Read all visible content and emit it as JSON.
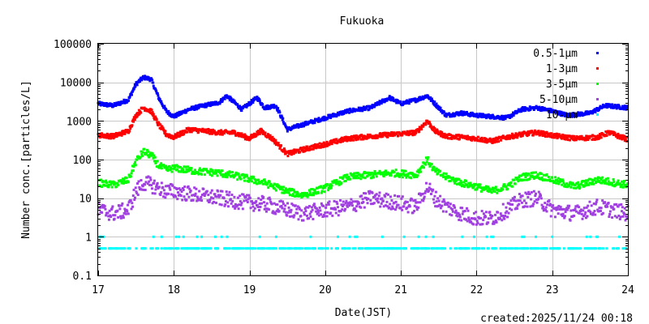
{
  "chart_data": {
    "type": "scatter",
    "title": "Fukuoka",
    "xlabel": "Date(JST)",
    "ylabel": "Number conc.[particles/L]",
    "footer": "created:2025/11/24 00:18",
    "x_ticks": [
      "17",
      "18",
      "19",
      "20",
      "21",
      "22",
      "23",
      "24"
    ],
    "y_ticks": [
      "0.1",
      "1",
      "10",
      "100",
      "1000",
      "10000",
      "100000"
    ],
    "xlim": [
      17,
      24
    ],
    "ylim": [
      0.1,
      100000
    ],
    "yscale": "log",
    "grid": true,
    "legend_position": "top-right",
    "series": [
      {
        "name": "0.5-1μm",
        "color": "#0000ff",
        "x": [
          17.0,
          17.2,
          17.4,
          17.5,
          17.6,
          17.7,
          17.8,
          17.9,
          18.0,
          18.2,
          18.4,
          18.6,
          18.7,
          18.9,
          19.1,
          19.2,
          19.35,
          19.5,
          19.7,
          20.0,
          20.3,
          20.6,
          20.85,
          21.0,
          21.2,
          21.35,
          21.45,
          21.6,
          21.8,
          22.0,
          22.2,
          22.4,
          22.6,
          22.8,
          23.0,
          23.2,
          23.5,
          23.7,
          24.0
        ],
        "y": [
          2800,
          2500,
          3500,
          9000,
          13500,
          12000,
          4000,
          1800,
          1300,
          2000,
          2500,
          3000,
          4500,
          2000,
          4000,
          2200,
          2500,
          600,
          800,
          1200,
          1800,
          2200,
          4000,
          2800,
          3500,
          4500,
          2800,
          1400,
          1600,
          1400,
          1300,
          1200,
          2000,
          2200,
          1800,
          1400,
          1600,
          2500,
          2200
        ]
      },
      {
        "name": "1-3μm",
        "color": "#ff0000",
        "x": [
          17.0,
          17.2,
          17.4,
          17.5,
          17.6,
          17.7,
          17.8,
          17.9,
          18.0,
          18.2,
          18.4,
          18.6,
          18.8,
          19.0,
          19.15,
          19.3,
          19.5,
          19.7,
          20.0,
          20.3,
          20.6,
          20.9,
          21.2,
          21.35,
          21.45,
          21.6,
          21.8,
          22.0,
          22.2,
          22.4,
          22.6,
          22.8,
          23.0,
          23.3,
          23.6,
          23.75,
          24.0
        ],
        "y": [
          430,
          400,
          550,
          1400,
          2200,
          1800,
          800,
          450,
          380,
          600,
          550,
          500,
          500,
          350,
          550,
          350,
          140,
          180,
          250,
          350,
          400,
          450,
          500,
          1000,
          550,
          400,
          380,
          350,
          300,
          380,
          450,
          500,
          420,
          350,
          380,
          500,
          330
        ]
      },
      {
        "name": "3-5μm",
        "color": "#00ff00",
        "x": [
          17.0,
          17.2,
          17.4,
          17.5,
          17.6,
          17.7,
          17.8,
          17.9,
          18.0,
          18.3,
          18.6,
          18.9,
          19.2,
          19.5,
          19.7,
          20.0,
          20.3,
          20.6,
          20.9,
          21.2,
          21.35,
          21.45,
          21.6,
          21.8,
          22.0,
          22.2,
          22.4,
          22.6,
          22.8,
          23.0,
          23.3,
          23.6,
          24.0
        ],
        "y": [
          25,
          22,
          30,
          90,
          160,
          130,
          70,
          55,
          60,
          50,
          45,
          35,
          25,
          15,
          12,
          18,
          35,
          40,
          45,
          40,
          100,
          50,
          35,
          25,
          20,
          15,
          20,
          35,
          40,
          30,
          20,
          30,
          22
        ]
      },
      {
        "name": "5-10μm",
        "color": "#a040e0",
        "x": [
          17.0,
          17.2,
          17.4,
          17.5,
          17.6,
          17.7,
          17.9,
          18.0,
          18.3,
          18.6,
          18.9,
          19.2,
          19.5,
          19.7,
          20.0,
          20.3,
          20.6,
          20.9,
          21.2,
          21.35,
          21.45,
          21.6,
          21.8,
          22.0,
          22.2,
          22.4,
          22.6,
          22.8,
          23.0,
          23.3,
          23.6,
          24.0
        ],
        "y": [
          5,
          4,
          5,
          15,
          25,
          22,
          15,
          15,
          12,
          10,
          8,
          7,
          5,
          4,
          5,
          6,
          10,
          8,
          6,
          20,
          10,
          6,
          4,
          3,
          3,
          5,
          9,
          10,
          5,
          4,
          6,
          4
        ]
      },
      {
        "name": "10-μm",
        "color": "#00ffff",
        "x": [
          17.0,
          24.0
        ],
        "y": [
          0.5,
          0.5
        ]
      }
    ]
  }
}
